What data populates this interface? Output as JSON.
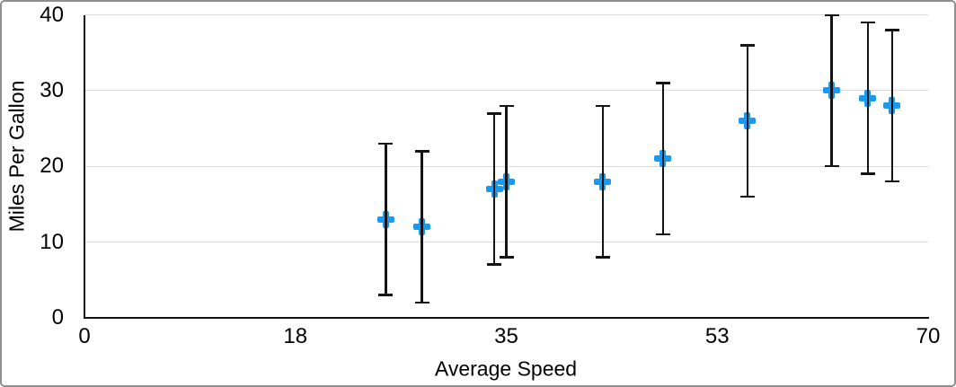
{
  "frame": {
    "background": "#ffffff",
    "border_color": "#8f8f8f"
  },
  "chart_data": {
    "type": "scatter",
    "title": "",
    "xlabel": "Average Speed",
    "ylabel": "Miles Per Gallon",
    "xlim": [
      0,
      70
    ],
    "ylim": [
      0,
      40
    ],
    "grid": "horizontal-only",
    "legend": "none",
    "marker": "plus",
    "marker_color": "#1899f2",
    "axis_color": "#141414",
    "gridline_color": "#d9d9d9",
    "x_ticks": [
      {
        "value": 0,
        "label": "0"
      },
      {
        "value": 17.5,
        "label": "18"
      },
      {
        "value": 35,
        "label": "35"
      },
      {
        "value": 52.5,
        "label": "53"
      },
      {
        "value": 70,
        "label": "70"
      }
    ],
    "y_ticks": [
      {
        "value": 0,
        "label": "0"
      },
      {
        "value": 10,
        "label": "10"
      },
      {
        "value": 20,
        "label": "20"
      },
      {
        "value": 30,
        "label": "30"
      },
      {
        "value": 40,
        "label": "40"
      }
    ],
    "error_bars": {
      "mode": "symmetric",
      "magnitude": 10,
      "color": "#141414"
    },
    "points": [
      {
        "x": 25,
        "y": 13,
        "err_plus": 10,
        "err_minus": 10
      },
      {
        "x": 28,
        "y": 12,
        "err_plus": 10,
        "err_minus": 10
      },
      {
        "x": 34,
        "y": 17,
        "err_plus": 10,
        "err_minus": 10
      },
      {
        "x": 35,
        "y": 18,
        "err_plus": 10,
        "err_minus": 10
      },
      {
        "x": 43,
        "y": 18,
        "err_plus": 10,
        "err_minus": 10
      },
      {
        "x": 48,
        "y": 21,
        "err_plus": 10,
        "err_minus": 10
      },
      {
        "x": 55,
        "y": 26,
        "err_plus": 10,
        "err_minus": 10
      },
      {
        "x": 62,
        "y": 30,
        "err_plus": 10,
        "err_minus": 10
      },
      {
        "x": 65,
        "y": 29,
        "err_plus": 10,
        "err_minus": 10
      },
      {
        "x": 67,
        "y": 28,
        "err_plus": 10,
        "err_minus": 10
      }
    ]
  }
}
